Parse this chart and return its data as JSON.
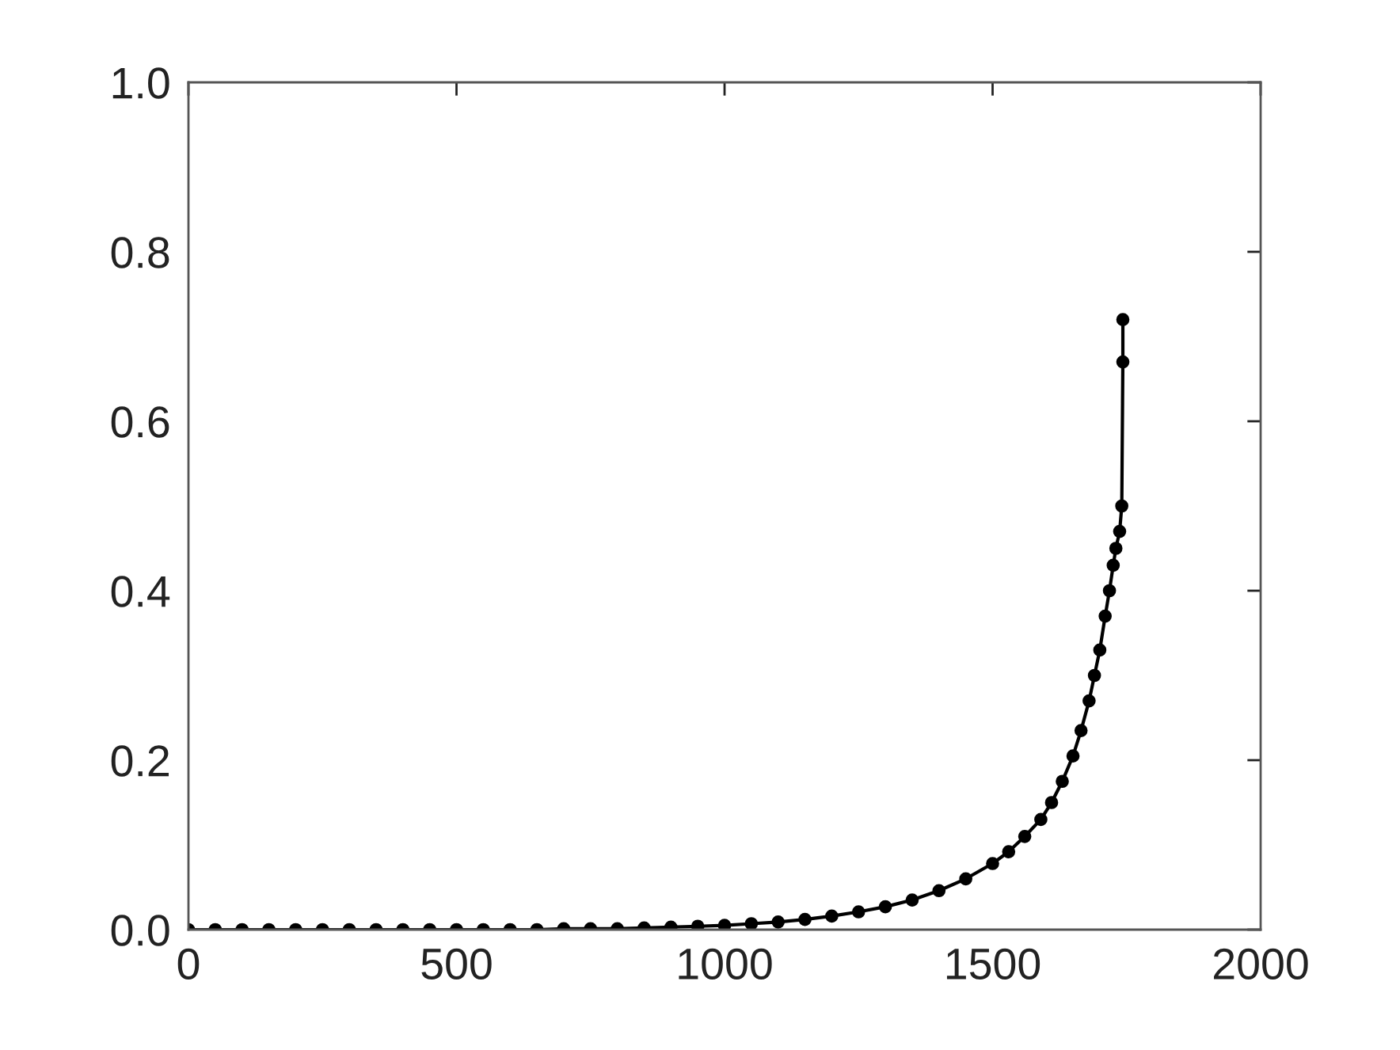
{
  "chart_data": {
    "type": "line",
    "color": "#000000",
    "marker": "circle",
    "line_style": "solid",
    "grid": false,
    "x": [
      0,
      50,
      100,
      150,
      200,
      250,
      300,
      350,
      400,
      450,
      500,
      550,
      600,
      650,
      700,
      750,
      800,
      850,
      900,
      950,
      1000,
      1050,
      1100,
      1150,
      1200,
      1250,
      1300,
      1350,
      1400,
      1450,
      1500,
      1530,
      1560,
      1590,
      1610,
      1630,
      1650,
      1665,
      1680,
      1690,
      1700,
      1710,
      1718,
      1725,
      1730,
      1737,
      1741,
      1743,
      1743
    ],
    "values": [
      0,
      0,
      0,
      0,
      0,
      0,
      0,
      0,
      0,
      0,
      0,
      0,
      0,
      0,
      0.001,
      0.001,
      0.001,
      0.002,
      0.003,
      0.004,
      0.005,
      0.007,
      0.009,
      0.012,
      0.016,
      0.021,
      0.027,
      0.035,
      0.046,
      0.06,
      0.078,
      0.092,
      0.11,
      0.13,
      0.15,
      0.175,
      0.205,
      0.235,
      0.27,
      0.3,
      0.33,
      0.37,
      0.4,
      0.43,
      0.45,
      0.47,
      0.5,
      0.67,
      0.72
    ],
    "xlim": [
      0,
      2000
    ],
    "xticks": [
      0,
      500,
      1000,
      1500,
      2000
    ],
    "ylim": [
      0,
      1.0
    ],
    "yticks": [
      {
        "value": 0,
        "label": "0.0"
      },
      {
        "value": 0.2,
        "label": "0.2"
      },
      {
        "value": 0.4,
        "label": "0.4"
      },
      {
        "value": 0.6,
        "label": "0.6"
      },
      {
        "value": 0.8,
        "label": "0.8"
      },
      {
        "value": 1.0,
        "label": "1.0"
      }
    ]
  }
}
